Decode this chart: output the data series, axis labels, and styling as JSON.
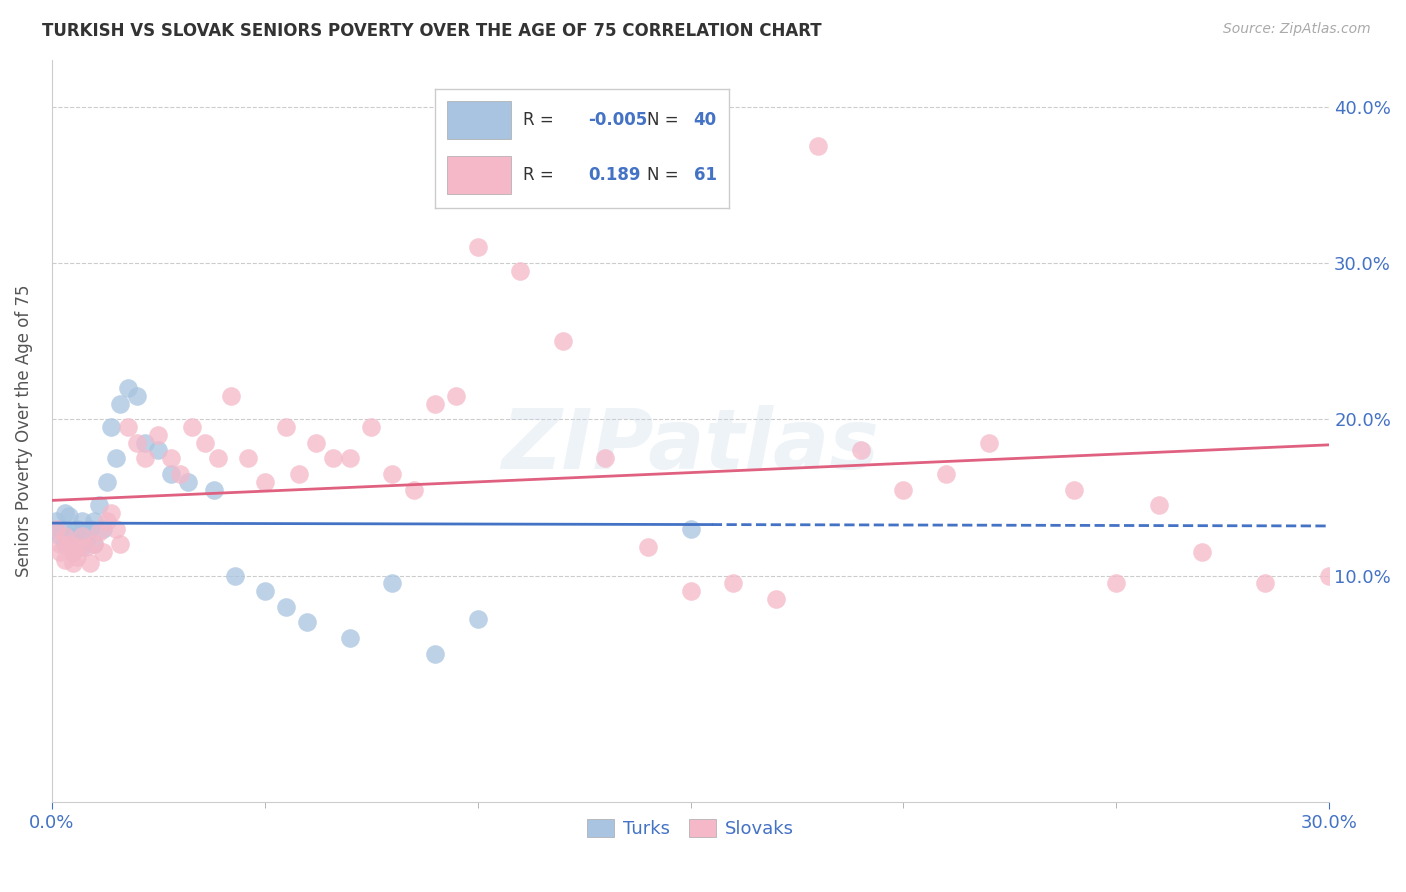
{
  "title": "TURKISH VS SLOVAK SENIORS POVERTY OVER THE AGE OF 75 CORRELATION CHART",
  "source": "Source: ZipAtlas.com",
  "ylabel_label": "Seniors Poverty Over the Age of 75",
  "xlim": [
    0.0,
    0.3
  ],
  "ylim": [
    -0.045,
    0.43
  ],
  "yticks": [
    0.1,
    0.2,
    0.3,
    0.4
  ],
  "ytick_labels": [
    "10.0%",
    "20.0%",
    "30.0%",
    "40.0%"
  ],
  "xtick_labels_ends": [
    "0.0%",
    "30.0%"
  ],
  "grid_color": "#cccccc",
  "tick_color": "#4472c4",
  "background_color": "#ffffff",
  "turks_color": "#a8c4e0",
  "slovaks_color": "#f4b8c8",
  "turks_line_color": "#4472c4",
  "slovaks_line_color": "#e06080",
  "legend_R_turks": "-0.005",
  "legend_N_turks": "40",
  "legend_R_slovaks": "0.189",
  "legend_N_slovaks": "61",
  "watermark": "ZIPatlas",
  "turks_x": [
    0.001,
    0.002,
    0.002,
    0.003,
    0.003,
    0.004,
    0.004,
    0.005,
    0.005,
    0.006,
    0.006,
    0.007,
    0.007,
    0.008,
    0.008,
    0.009,
    0.01,
    0.01,
    0.011,
    0.012,
    0.013,
    0.014,
    0.015,
    0.016,
    0.018,
    0.02,
    0.022,
    0.025,
    0.028,
    0.032,
    0.038,
    0.043,
    0.05,
    0.055,
    0.06,
    0.07,
    0.08,
    0.09,
    0.1,
    0.15
  ],
  "turks_y": [
    0.135,
    0.13,
    0.125,
    0.14,
    0.12,
    0.138,
    0.125,
    0.115,
    0.128,
    0.13,
    0.12,
    0.135,
    0.118,
    0.128,
    0.122,
    0.13,
    0.135,
    0.12,
    0.145,
    0.13,
    0.16,
    0.195,
    0.175,
    0.21,
    0.22,
    0.215,
    0.185,
    0.18,
    0.165,
    0.16,
    0.155,
    0.1,
    0.09,
    0.08,
    0.07,
    0.06,
    0.095,
    0.05,
    0.072,
    0.13
  ],
  "slovaks_x": [
    0.001,
    0.002,
    0.002,
    0.003,
    0.003,
    0.004,
    0.005,
    0.005,
    0.006,
    0.006,
    0.007,
    0.008,
    0.009,
    0.01,
    0.011,
    0.012,
    0.013,
    0.014,
    0.015,
    0.016,
    0.018,
    0.02,
    0.022,
    0.025,
    0.028,
    0.03,
    0.033,
    0.036,
    0.039,
    0.042,
    0.046,
    0.05,
    0.055,
    0.058,
    0.062,
    0.066,
    0.07,
    0.075,
    0.08,
    0.085,
    0.09,
    0.095,
    0.1,
    0.11,
    0.12,
    0.13,
    0.14,
    0.15,
    0.16,
    0.17,
    0.18,
    0.19,
    0.2,
    0.21,
    0.22,
    0.24,
    0.25,
    0.26,
    0.27,
    0.285,
    0.3
  ],
  "slovaks_y": [
    0.13,
    0.12,
    0.115,
    0.125,
    0.11,
    0.12,
    0.115,
    0.108,
    0.118,
    0.112,
    0.125,
    0.118,
    0.108,
    0.12,
    0.128,
    0.115,
    0.135,
    0.14,
    0.13,
    0.12,
    0.195,
    0.185,
    0.175,
    0.19,
    0.175,
    0.165,
    0.195,
    0.185,
    0.175,
    0.215,
    0.175,
    0.16,
    0.195,
    0.165,
    0.185,
    0.175,
    0.175,
    0.195,
    0.165,
    0.155,
    0.21,
    0.215,
    0.31,
    0.295,
    0.25,
    0.175,
    0.118,
    0.09,
    0.095,
    0.085,
    0.375,
    0.18,
    0.155,
    0.165,
    0.185,
    0.155,
    0.095,
    0.145,
    0.115,
    0.095,
    0.1
  ]
}
